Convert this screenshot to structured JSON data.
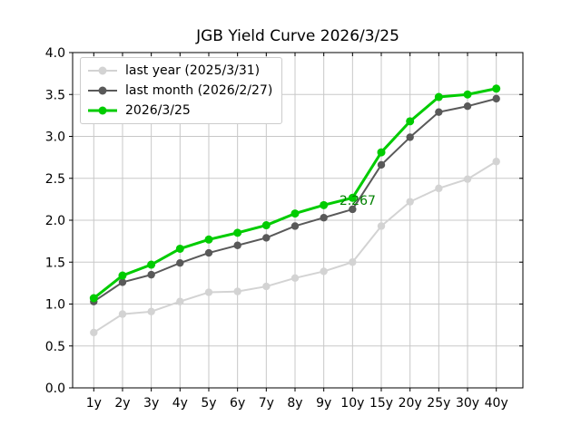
{
  "chart_data": {
    "type": "line",
    "title": "JGB Yield Curve 2026/3/25",
    "xlabel": "",
    "ylabel": "",
    "categories": [
      "1y",
      "2y",
      "3y",
      "4y",
      "5y",
      "6y",
      "7y",
      "8y",
      "9y",
      "10y",
      "15y",
      "20y",
      "25y",
      "30y",
      "40y"
    ],
    "ylim": [
      0.0,
      4.0
    ],
    "yticks": [
      "0.0",
      "0.5",
      "1.0",
      "1.5",
      "2.0",
      "2.5",
      "3.0",
      "3.5",
      "4.0"
    ],
    "grid": true,
    "legend_position": "upper left",
    "series": [
      {
        "name": "last year (2025/3/31)",
        "color": "#d3d3d3",
        "values": [
          0.66,
          0.88,
          0.91,
          1.03,
          1.14,
          1.15,
          1.21,
          1.31,
          1.39,
          1.5,
          1.93,
          2.22,
          2.38,
          2.49,
          2.7
        ]
      },
      {
        "name": "last month (2026/2/27)",
        "color": "#595959",
        "values": [
          1.03,
          1.26,
          1.35,
          1.49,
          1.61,
          1.7,
          1.79,
          1.93,
          2.03,
          2.13,
          2.66,
          2.99,
          3.29,
          3.36,
          3.45
        ]
      },
      {
        "name": "2026/3/25",
        "color": "#00cc00",
        "values": [
          1.07,
          1.34,
          1.47,
          1.66,
          1.77,
          1.85,
          1.94,
          2.08,
          2.18,
          2.267,
          2.81,
          3.18,
          3.47,
          3.5,
          3.57
        ]
      }
    ],
    "annotation": {
      "text": "2.267",
      "category": "10y",
      "value": 2.267,
      "color": "#008000"
    },
    "colors": {
      "grid": "#c8c8c8",
      "spine": "#000000",
      "background": "#ffffff"
    }
  }
}
